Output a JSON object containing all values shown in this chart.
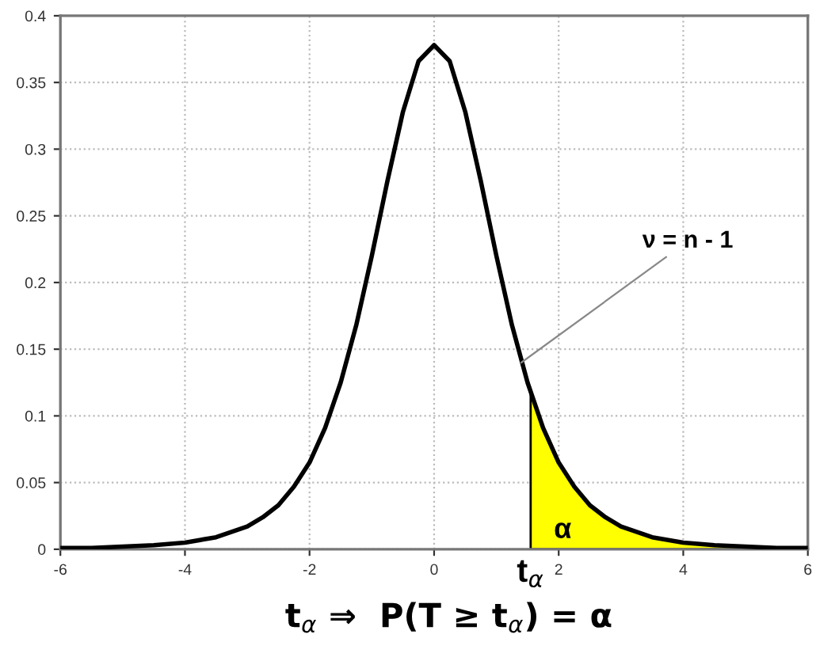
{
  "chart_data": {
    "type": "line",
    "xlim": [
      -6,
      6
    ],
    "ylim": [
      0,
      0.4
    ],
    "xticks": [
      -6,
      -4,
      -2,
      0,
      2,
      4,
      6
    ],
    "yticks": [
      0,
      0.05,
      0.1,
      0.15,
      0.2,
      0.25,
      0.3,
      0.35,
      0.4
    ],
    "grid": true,
    "line_style": "solid",
    "marker": "none",
    "series": [
      {
        "color": "#000000",
        "x": [
          -6,
          -5.5,
          -5,
          -4.5,
          -4,
          -3.5,
          -3,
          -2.75,
          -2.5,
          -2.25,
          -2,
          -1.75,
          -1.5,
          -1.25,
          -1,
          -0.75,
          -0.5,
          -0.25,
          0,
          0.25,
          0.5,
          0.75,
          1,
          1.25,
          1.5,
          1.75,
          2,
          2.25,
          2.5,
          2.75,
          3,
          3.5,
          4,
          4.5,
          5,
          5.5,
          6
        ],
        "values": [
          0.001,
          0.001,
          0.002,
          0.003,
          0.005,
          0.009,
          0.017,
          0.024,
          0.033,
          0.047,
          0.065,
          0.091,
          0.125,
          0.168,
          0.22,
          0.276,
          0.328,
          0.366,
          0.378,
          0.366,
          0.328,
          0.276,
          0.22,
          0.168,
          0.125,
          0.091,
          0.065,
          0.047,
          0.033,
          0.024,
          0.017,
          0.009,
          0.005,
          0.003,
          0.002,
          0.001,
          0.001
        ]
      },
      {
        "type": "area",
        "color": "#ffff00",
        "x": [
          1.55,
          1.75,
          2,
          2.25,
          2.5,
          2.75,
          3,
          3.5,
          4,
          4.5,
          5,
          5.5,
          6
        ],
        "values": [
          0.118,
          0.091,
          0.065,
          0.047,
          0.033,
          0.024,
          0.017,
          0.009,
          0.005,
          0.003,
          0.002,
          0.001,
          0.001
        ]
      }
    ],
    "annotations": [
      {
        "text": "ν = n - 1",
        "x": 1.4,
        "y": 0.14
      },
      "α",
      {
        "text": "t$_{α}$",
        "x": 1.55,
        "y": 0
      },
      "t$_{α}$ ⇒  P(T ≥ t$_{α}$) = α"
    ]
  }
}
